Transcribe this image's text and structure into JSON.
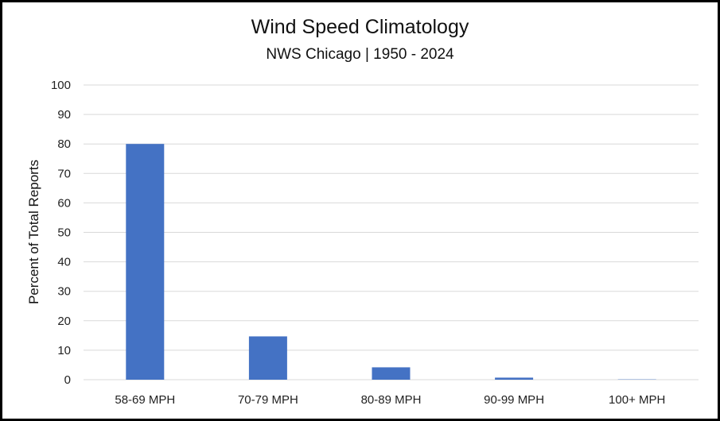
{
  "chart_data": {
    "type": "bar",
    "title": "Wind Speed Climatology",
    "subtitle": "NWS Chicago | 1950 - 2024",
    "xlabel": "",
    "ylabel": "Percent of Total Reports",
    "categories": [
      "58-69 MPH",
      "70-79 MPH",
      "80-89 MPH",
      "90-99 MPH",
      "100+ MPH"
    ],
    "values": [
      80,
      14.7,
      4.2,
      0.7,
      0.1
    ],
    "ylim": [
      0,
      100
    ],
    "yticks": [
      "0",
      "10",
      "20",
      "30",
      "40",
      "50",
      "60",
      "70",
      "80",
      "90",
      "100"
    ],
    "grid": true,
    "legend": "none",
    "colors": {
      "bar": "#4472C4",
      "grid": "#D9D9D9",
      "border": "#000000"
    }
  }
}
